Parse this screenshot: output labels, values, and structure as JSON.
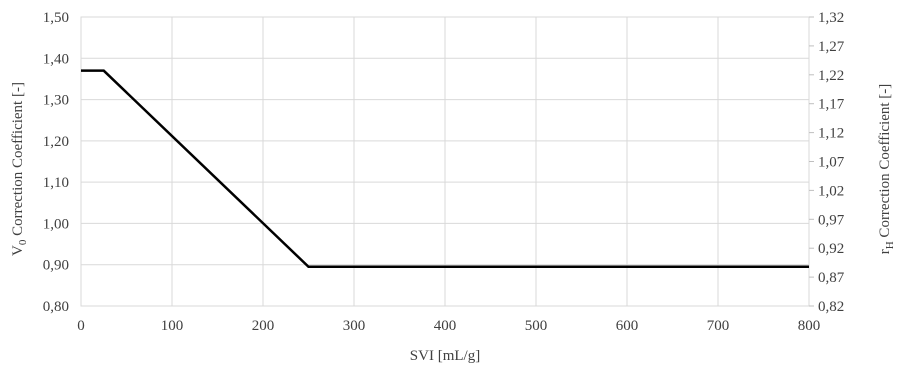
{
  "chart_data": {
    "type": "line",
    "title": "",
    "xlabel": "SVI [mL/g]",
    "ylabel": {
      "main": "V",
      "sub": "0",
      "rest": " Correction Coefficient [-]"
    },
    "y2label": {
      "main": "r",
      "sub": "H",
      "rest": " Correction Coefficient [-]"
    },
    "xlim": [
      0,
      800
    ],
    "ylim": [
      0.8,
      1.5
    ],
    "y2lim": [
      0.82,
      1.32
    ],
    "x_ticks": [
      0,
      100,
      200,
      300,
      400,
      500,
      600,
      700,
      800
    ],
    "x_tick_labels": [
      "0",
      "100",
      "200",
      "300",
      "400",
      "500",
      "600",
      "700",
      "800"
    ],
    "y_ticks": [
      0.8,
      0.9,
      1.0,
      1.1,
      1.2,
      1.3,
      1.4,
      1.5
    ],
    "y_tick_labels": [
      "0,80",
      "0,90",
      "1,00",
      "1,10",
      "1,20",
      "1,30",
      "1,40",
      "1,50"
    ],
    "y2_ticks": [
      0.82,
      0.87,
      0.92,
      0.97,
      1.02,
      1.07,
      1.12,
      1.17,
      1.22,
      1.27,
      1.32
    ],
    "y2_tick_labels": [
      "0,82",
      "0,87",
      "0,92",
      "0,97",
      "1,02",
      "1,07",
      "1,12",
      "1,17",
      "1,22",
      "1,27",
      "1,32"
    ],
    "grid": true,
    "line_color": "#000000",
    "grid_color": "#d9d9d9",
    "series": [
      {
        "x": [
          0,
          25,
          250,
          800
        ],
        "y": [
          1.37,
          1.37,
          0.895,
          0.895
        ]
      }
    ]
  }
}
